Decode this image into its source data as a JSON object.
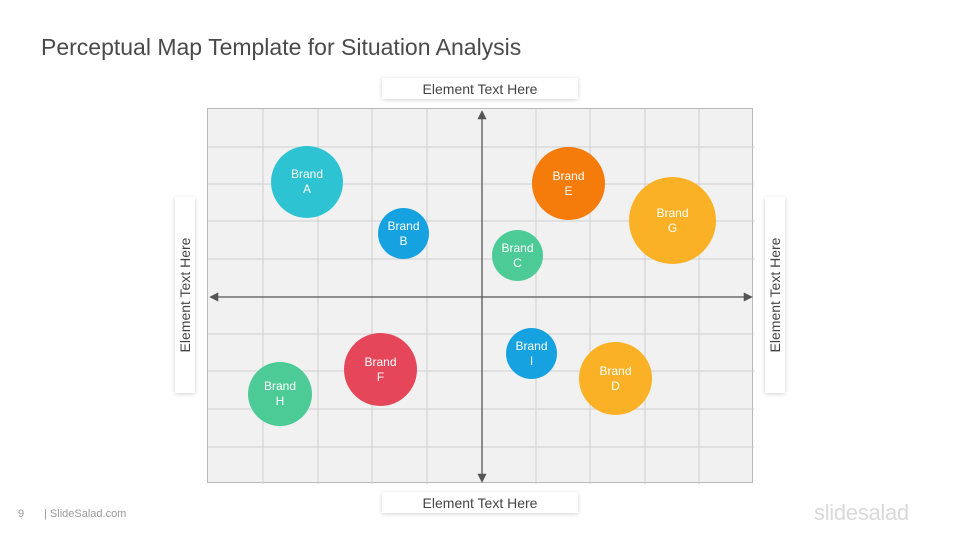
{
  "slide": {
    "title": "Perceptual Map Template for Situation Analysis",
    "page_number": "9",
    "site": "| SlideSalad.com",
    "logo": "slidesalad"
  },
  "axes": {
    "top": "Element Text Here",
    "bottom": "Element Text Here",
    "left": "Element Text Here",
    "right": "Element Text Here"
  },
  "brands": [
    {
      "line1": "Brand",
      "line2": "A",
      "color": "#2ec3d3"
    },
    {
      "line1": "Brand",
      "line2": "B",
      "color": "#16a2e0"
    },
    {
      "line1": "Brand",
      "line2": "C",
      "color": "#4ccb97"
    },
    {
      "line1": "Brand",
      "line2": "D",
      "color": "#fbb125"
    },
    {
      "line1": "Brand",
      "line2": "E",
      "color": "#f57b0b"
    },
    {
      "line1": "Brand",
      "line2": "F",
      "color": "#e5465a"
    },
    {
      "line1": "Brand",
      "line2": "G",
      "color": "#fbb125"
    },
    {
      "line1": "Brand",
      "line2": "H",
      "color": "#4ccb97"
    },
    {
      "line1": "Brand",
      "line2": "I",
      "color": "#16a2e0"
    }
  ]
}
